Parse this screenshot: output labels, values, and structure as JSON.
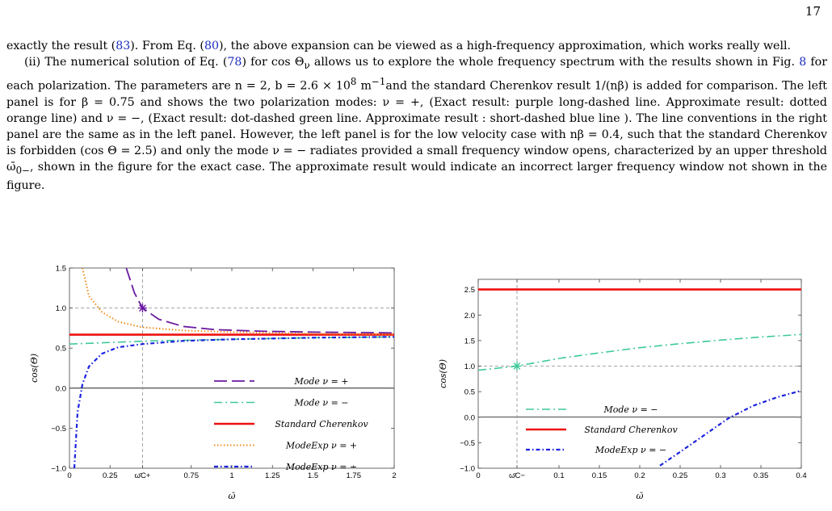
{
  "page": {
    "number": "17"
  },
  "text": {
    "p1": [
      {
        "t": "exactly the result ("
      },
      {
        "t": "83",
        "ref": true
      },
      {
        "t": "). From Eq. ("
      },
      {
        "t": "80",
        "ref": true
      },
      {
        "t": "), the above expansion can be viewed as a high-frequency approximation, which works really well."
      }
    ],
    "p2": [
      {
        "t": "(ii) The numerical solution of Eq. ("
      },
      {
        "t": "78",
        "ref": true
      },
      {
        "t": ") for cos Θ"
      },
      {
        "t": "ν",
        "sub": true
      },
      {
        "t": " allows us to explore the whole frequency spectrum with the results shown in Fig. "
      },
      {
        "t": "8",
        "ref": true
      },
      {
        "t": " for each polarization. The parameters are n = 2, b = 2.6 × 10"
      },
      {
        "t": "8",
        "sup": true
      },
      {
        "t": " m"
      },
      {
        "t": "−1",
        "sup": true
      },
      {
        "t": "and the standard Cherenkov result 1/(nβ) is added for comparison. The left panel is for β = 0.75 and shows the two polarization modes: ν = +, (Exact result: purple long-dashed line. Approximate result: dotted orange line) and ν = −, (Exact result: dot-dashed green line. Approximate result : short-dashed blue line ). The line conventions in the right panel are the same as in the left panel. However, the left panel is for the low velocity case with nβ = 0.4, such that the standard Cherenkov is forbidden (cos Θ = 2.5) and only the mode ν = − radiates provided a small frequency window opens, characterized by an upper threshold ω̄"
      },
      {
        "t": "0−",
        "sub": true
      },
      {
        "t": ", shown in the figure for the exact case. The approximate result would indicate an incorrect larger frequency window not shown in the figure."
      }
    ]
  },
  "colors": {
    "purple": "#6a1aa0",
    "green": "#3ec99a",
    "red": "#ee1111",
    "orange": "#f08c1a",
    "blue": "#1a22dd",
    "grid": "#999999"
  },
  "chart_data": [
    {
      "type": "line",
      "xlabel": "ω̄",
      "ylabel": "cos(Θ)",
      "xlim": [
        0,
        2
      ],
      "ylim": [
        -1.0,
        1.5
      ],
      "xticks": [
        "0",
        "0.25",
        "ω̄C+",
        "0.75",
        "1",
        "1.25",
        "1.5",
        "1.75",
        "2"
      ],
      "xtick_values": [
        0,
        0.25,
        0.45,
        0.75,
        1,
        1.25,
        1.5,
        1.75,
        2
      ],
      "yticks": [
        "−1.0",
        "−0.5",
        "0.0",
        "0.5",
        "1.0",
        "1.5"
      ],
      "ytick_values": [
        -1.0,
        -0.5,
        0.0,
        0.5,
        1.0,
        1.5
      ],
      "marker": {
        "x": 0.45,
        "y": 1.0,
        "series": "Mode ν = +"
      },
      "legend_position": "bottom-right",
      "series": [
        {
          "name": "Mode ν = +",
          "style": "long-dash",
          "color": "purple",
          "x": [
            0.35,
            0.4,
            0.45,
            0.55,
            0.7,
            0.9,
            1.2,
            1.5,
            2.0
          ],
          "y": [
            1.5,
            1.19,
            1.0,
            0.86,
            0.77,
            0.73,
            0.71,
            0.7,
            0.69
          ]
        },
        {
          "name": "Mode ν = −",
          "style": "dot-dash",
          "color": "green",
          "x": [
            0,
            0.5,
            1.0,
            1.5,
            2.0
          ],
          "y": [
            0.55,
            0.59,
            0.61,
            0.63,
            0.64
          ]
        },
        {
          "name": "Standard Cherenkov",
          "style": "solid",
          "color": "red",
          "x": [
            0,
            2.0
          ],
          "y": [
            0.667,
            0.667
          ]
        },
        {
          "name": "ModeExp ν = +",
          "style": "dotted",
          "color": "orange",
          "x": [
            0.08,
            0.12,
            0.2,
            0.3,
            0.45,
            0.7,
            1.0,
            1.5,
            2.0
          ],
          "y": [
            1.5,
            1.15,
            0.95,
            0.83,
            0.76,
            0.72,
            0.7,
            0.68,
            0.67
          ]
        },
        {
          "name": "ModeExp ν = −",
          "style": "short-dash-dot",
          "color": "blue",
          "x": [
            0.03,
            0.05,
            0.08,
            0.12,
            0.2,
            0.3,
            0.45,
            0.7,
            1.0,
            1.5,
            2.0
          ],
          "y": [
            -1.0,
            -0.3,
            0.05,
            0.27,
            0.43,
            0.51,
            0.55,
            0.59,
            0.61,
            0.63,
            0.64
          ]
        }
      ]
    },
    {
      "type": "line",
      "xlabel": "ω̄",
      "ylabel": "cos(Θ)",
      "xlim": [
        0,
        0.4
      ],
      "ylim": [
        -1.0,
        2.7
      ],
      "xticks": [
        "0",
        "ω̄C−",
        "0.1",
        "0.15",
        "0.2",
        "0.25",
        "0.3",
        "0.35",
        "0.4"
      ],
      "xtick_values": [
        0,
        0.048,
        0.1,
        0.15,
        0.2,
        0.25,
        0.3,
        0.35,
        0.4
      ],
      "yticks": [
        "−1.0",
        "−0.5",
        "0.0",
        "0.5",
        "1.0",
        "1.5",
        "2.0",
        "2.5"
      ],
      "ytick_values": [
        -1.0,
        -0.5,
        0.0,
        0.5,
        1.0,
        1.5,
        2.0,
        2.5
      ],
      "marker": {
        "x": 0.048,
        "y": 1.0,
        "series": "Mode ν = −"
      },
      "legend_position": "bottom-left",
      "series": [
        {
          "name": "Mode ν = −",
          "style": "dot-dash",
          "color": "green",
          "x": [
            0,
            0.048,
            0.1,
            0.15,
            0.2,
            0.25,
            0.3,
            0.35,
            0.4
          ],
          "y": [
            0.92,
            1.0,
            1.15,
            1.26,
            1.36,
            1.44,
            1.51,
            1.57,
            1.62
          ]
        },
        {
          "name": "Standard Cherenkov",
          "style": "solid",
          "color": "red",
          "x": [
            0,
            0.4
          ],
          "y": [
            2.5,
            2.5
          ]
        },
        {
          "name": "ModeExp ν = −",
          "style": "short-dash-dot",
          "color": "blue",
          "x": [
            0.225,
            0.25,
            0.28,
            0.31,
            0.34,
            0.37,
            0.4
          ],
          "y": [
            -0.95,
            -0.68,
            -0.35,
            -0.02,
            0.22,
            0.39,
            0.52
          ]
        }
      ]
    }
  ]
}
